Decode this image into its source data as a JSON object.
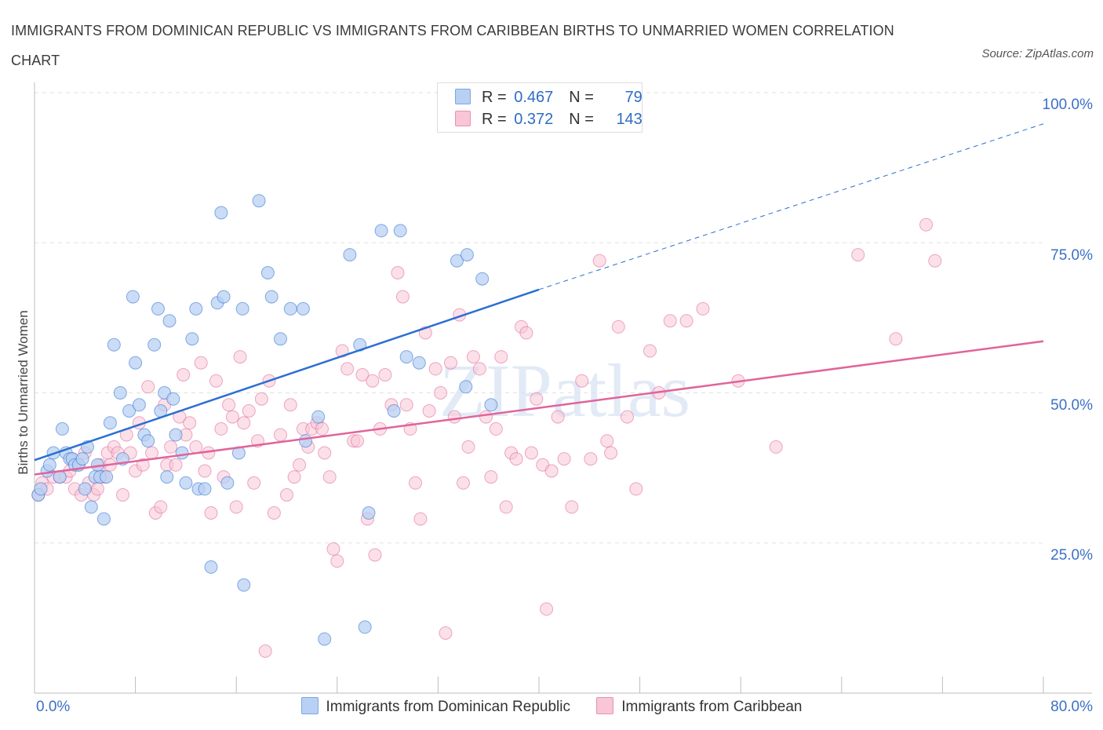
{
  "title": "IMMIGRANTS FROM DOMINICAN REPUBLIC VS IMMIGRANTS FROM CARIBBEAN BIRTHS TO UNMARRIED WOMEN CORRELATION CHART",
  "source": "Source: ZipAtlas.com",
  "watermark": "ZIPatlas",
  "stats": [
    {
      "r_label": "R =",
      "r_value": "0.467",
      "n_label": "N =",
      "n_value": "79"
    },
    {
      "r_label": "R =",
      "r_value": "0.372",
      "n_label": "N =",
      "n_value": "143"
    }
  ],
  "colors": {
    "blue": "#2b6fd2",
    "blue_fill": "#b8d0f3",
    "pink": "#e0649a",
    "pink_fill": "#f8c6d6",
    "axis_text": "#3c70c6",
    "grid": "#e2e2e2"
  },
  "chart_data": {
    "type": "scatter",
    "title": "IMMIGRANTS FROM DOMINICAN REPUBLIC VS IMMIGRANTS FROM CARIBBEAN BIRTHS TO UNMARRIED WOMEN CORRELATION CHART",
    "xlabel": "",
    "ylabel": "Births to Unmarried Women",
    "xlim": [
      0,
      80
    ],
    "ylim": [
      0,
      100
    ],
    "x_tick_labels": [
      "0.0%",
      "80.0%"
    ],
    "y_tick_labels": [
      "25.0%",
      "50.0%",
      "75.0%",
      "100.0%"
    ],
    "y_ticks": [
      25,
      50,
      75,
      100
    ],
    "grid": true,
    "legend_position": "bottom-center",
    "series": [
      {
        "name": "Immigrants from Dominican Republic",
        "color": "#2b6fd2",
        "trend": {
          "x0": 0,
          "y0": 38.8,
          "x1": 40,
          "y1": 67.2,
          "dashed_to_x": 80,
          "dashed_to_y": 94.8
        },
        "points": [
          [
            0.3,
            33
          ],
          [
            0.5,
            34
          ],
          [
            1,
            37
          ],
          [
            1.2,
            38
          ],
          [
            1.5,
            40
          ],
          [
            2,
            36
          ],
          [
            2.2,
            44
          ],
          [
            2.5,
            40
          ],
          [
            2.8,
            39
          ],
          [
            3,
            39
          ],
          [
            3.2,
            38
          ],
          [
            3.5,
            38
          ],
          [
            3.8,
            39
          ],
          [
            4,
            34
          ],
          [
            4.2,
            41
          ],
          [
            4.5,
            31
          ],
          [
            4.8,
            36
          ],
          [
            5,
            38
          ],
          [
            5.2,
            36
          ],
          [
            5.5,
            29
          ],
          [
            5.7,
            36
          ],
          [
            6,
            45
          ],
          [
            6.3,
            58
          ],
          [
            6.8,
            50
          ],
          [
            7,
            39
          ],
          [
            7.5,
            47
          ],
          [
            7.8,
            66
          ],
          [
            8,
            55
          ],
          [
            8.3,
            48
          ],
          [
            8.7,
            43
          ],
          [
            9,
            42
          ],
          [
            9.5,
            58
          ],
          [
            9.8,
            64
          ],
          [
            10,
            47
          ],
          [
            10.3,
            50
          ],
          [
            10.5,
            36
          ],
          [
            10.7,
            62
          ],
          [
            11,
            49
          ],
          [
            11.2,
            43
          ],
          [
            11.7,
            40
          ],
          [
            12,
            35
          ],
          [
            12.5,
            59
          ],
          [
            12.8,
            64
          ],
          [
            13,
            34
          ],
          [
            13.5,
            34
          ],
          [
            14,
            21
          ],
          [
            14.5,
            65
          ],
          [
            14.8,
            80
          ],
          [
            15,
            66
          ],
          [
            15.3,
            35
          ],
          [
            16.2,
            40
          ],
          [
            16.5,
            64
          ],
          [
            16.6,
            18
          ],
          [
            17.8,
            82
          ],
          [
            18.5,
            70
          ],
          [
            18.8,
            66
          ],
          [
            19.5,
            59
          ],
          [
            20.3,
            64
          ],
          [
            21.3,
            64
          ],
          [
            21.5,
            42
          ],
          [
            22.5,
            46
          ],
          [
            23,
            9
          ],
          [
            25,
            73
          ],
          [
            25.8,
            58
          ],
          [
            26.2,
            11
          ],
          [
            26.5,
            30
          ],
          [
            27.5,
            77
          ],
          [
            28.5,
            47
          ],
          [
            29,
            77
          ],
          [
            29.5,
            56
          ],
          [
            30.5,
            55
          ],
          [
            33.5,
            72
          ],
          [
            34.2,
            51
          ],
          [
            34.3,
            73
          ],
          [
            35.5,
            69
          ],
          [
            36.2,
            48
          ]
        ]
      },
      {
        "name": "Immigrants from Caribbean",
        "color": "#e0649a",
        "trend": {
          "x0": 0,
          "y0": 36.4,
          "x1": 80,
          "y1": 58.6
        },
        "points": [
          [
            0.3,
            33
          ],
          [
            0.6,
            35
          ],
          [
            1,
            34
          ],
          [
            1.5,
            36
          ],
          [
            2,
            36
          ],
          [
            2.5,
            36
          ],
          [
            2.8,
            37
          ],
          [
            3,
            39
          ],
          [
            3.2,
            34
          ],
          [
            3.5,
            38
          ],
          [
            3.7,
            33
          ],
          [
            4,
            40
          ],
          [
            4.3,
            35
          ],
          [
            4.7,
            33
          ],
          [
            5,
            34
          ],
          [
            5.2,
            38
          ],
          [
            5.5,
            36
          ],
          [
            5.8,
            40
          ],
          [
            6,
            38
          ],
          [
            6.3,
            41
          ],
          [
            6.6,
            40
          ],
          [
            7,
            33
          ],
          [
            7.3,
            43
          ],
          [
            7.6,
            40
          ],
          [
            8,
            37
          ],
          [
            8.3,
            45
          ],
          [
            8.6,
            38
          ],
          [
            9,
            51
          ],
          [
            9.3,
            40
          ],
          [
            9.6,
            30
          ],
          [
            10,
            31
          ],
          [
            10.3,
            48
          ],
          [
            10.5,
            38
          ],
          [
            10.8,
            41
          ],
          [
            11.2,
            38
          ],
          [
            11.5,
            46
          ],
          [
            11.8,
            53
          ],
          [
            12,
            43
          ],
          [
            12.3,
            45
          ],
          [
            12.8,
            41
          ],
          [
            13.2,
            55
          ],
          [
            13.5,
            37
          ],
          [
            13.8,
            40
          ],
          [
            14,
            30
          ],
          [
            14.4,
            52
          ],
          [
            14.8,
            44
          ],
          [
            15,
            36
          ],
          [
            15.4,
            48
          ],
          [
            15.7,
            46
          ],
          [
            16,
            31
          ],
          [
            16.3,
            56
          ],
          [
            16.6,
            45
          ],
          [
            17,
            47
          ],
          [
            17.4,
            35
          ],
          [
            17.7,
            42
          ],
          [
            18,
            49
          ],
          [
            18.3,
            7
          ],
          [
            18.6,
            52
          ],
          [
            19,
            30
          ],
          [
            19.5,
            43
          ],
          [
            20,
            33
          ],
          [
            20.3,
            48
          ],
          [
            20.6,
            36
          ],
          [
            21,
            38
          ],
          [
            21.3,
            44
          ],
          [
            21.7,
            41
          ],
          [
            22,
            44
          ],
          [
            22.4,
            45
          ],
          [
            22.8,
            44
          ],
          [
            23,
            40
          ],
          [
            23.4,
            36
          ],
          [
            23.7,
            24
          ],
          [
            24,
            22
          ],
          [
            24.4,
            57
          ],
          [
            24.8,
            54
          ],
          [
            25.3,
            42
          ],
          [
            25.6,
            42
          ],
          [
            26,
            53
          ],
          [
            26.4,
            29
          ],
          [
            26.8,
            52
          ],
          [
            27,
            23
          ],
          [
            27.4,
            44
          ],
          [
            27.8,
            53
          ],
          [
            28.3,
            48
          ],
          [
            28.8,
            70
          ],
          [
            29.2,
            66
          ],
          [
            29.5,
            48
          ],
          [
            29.8,
            44
          ],
          [
            30.2,
            35
          ],
          [
            30.6,
            29
          ],
          [
            31,
            60
          ],
          [
            31.3,
            47
          ],
          [
            31.8,
            54
          ],
          [
            32.2,
            50
          ],
          [
            32.6,
            10
          ],
          [
            33,
            55
          ],
          [
            33.3,
            46
          ],
          [
            33.7,
            63
          ],
          [
            34,
            35
          ],
          [
            34.4,
            41
          ],
          [
            34.8,
            56
          ],
          [
            35.3,
            54
          ],
          [
            35.8,
            46
          ],
          [
            36.2,
            36
          ],
          [
            36.6,
            44
          ],
          [
            37,
            56
          ],
          [
            37.4,
            31
          ],
          [
            37.8,
            40
          ],
          [
            38.2,
            39
          ],
          [
            38.6,
            61
          ],
          [
            39,
            60
          ],
          [
            39.4,
            40
          ],
          [
            39.8,
            49
          ],
          [
            40.3,
            38
          ],
          [
            40.6,
            14
          ],
          [
            41,
            37
          ],
          [
            41.5,
            46
          ],
          [
            42,
            39
          ],
          [
            42.6,
            31
          ],
          [
            43.4,
            52
          ],
          [
            44.1,
            39
          ],
          [
            44.8,
            72
          ],
          [
            45.4,
            42
          ],
          [
            45.7,
            40
          ],
          [
            46.3,
            61
          ],
          [
            47,
            46
          ],
          [
            47.7,
            34
          ],
          [
            48.8,
            57
          ],
          [
            49.5,
            50
          ],
          [
            50.4,
            62
          ],
          [
            51.7,
            62
          ],
          [
            53,
            64
          ],
          [
            55.8,
            52
          ],
          [
            58.8,
            41
          ],
          [
            65.3,
            73
          ],
          [
            68.3,
            59
          ],
          [
            70.7,
            78
          ],
          [
            71.4,
            72
          ]
        ]
      }
    ]
  }
}
